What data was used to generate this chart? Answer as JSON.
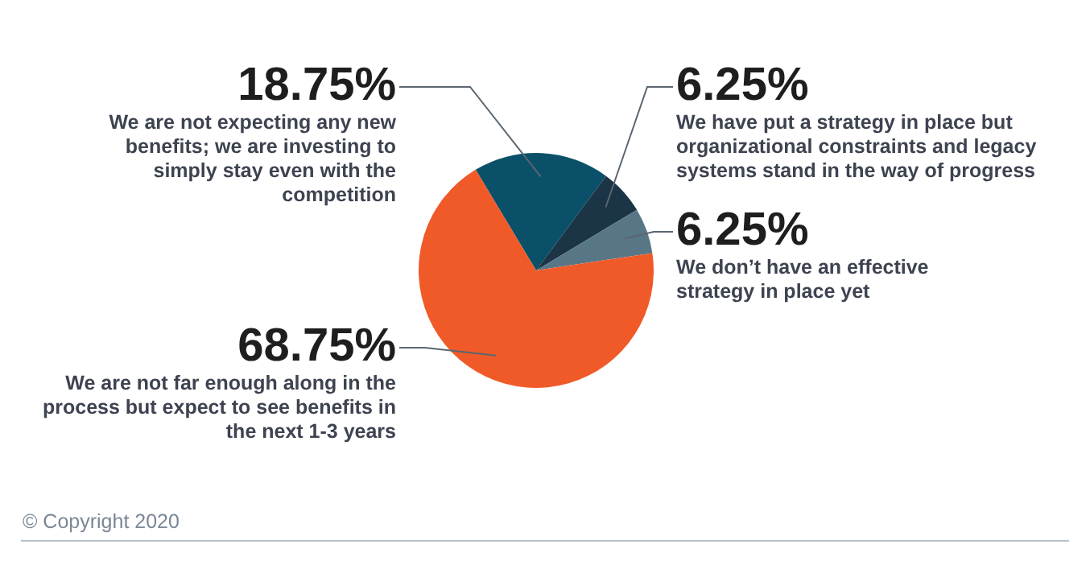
{
  "chart_data": {
    "type": "pie",
    "categories": [
      "We are not expecting any new benefits; we are investing to simply stay even with the competition",
      "We have put a strategy in place but organizational constraints and legacy systems stand in the way of progress",
      "We don’t have an effective strategy in place yet",
      "We are not far enough along in the process but expect to see benefits in the next 1-3 years"
    ],
    "values": [
      18.75,
      6.25,
      6.25,
      68.75
    ],
    "value_labels": [
      "18.75%",
      "6.25%",
      "6.25%",
      "68.75%"
    ],
    "colors": [
      "#0b5069",
      "#1b3446",
      "#587786",
      "#f05a28"
    ],
    "annotations": [
      "© Copyright 2020"
    ]
  }
}
